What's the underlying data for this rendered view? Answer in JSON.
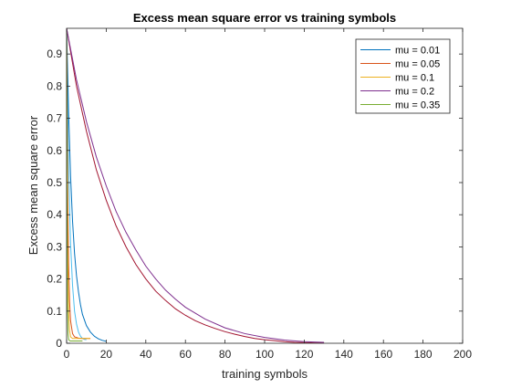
{
  "chart_data": {
    "type": "line",
    "title": "Excess mean square error vs training symbols",
    "xlabel": "training symbols",
    "ylabel": "Excess mean square error",
    "xlim": [
      0,
      200
    ],
    "ylim": [
      0,
      0.98
    ],
    "xticks": [
      0,
      20,
      40,
      60,
      80,
      100,
      120,
      140,
      160,
      180,
      200
    ],
    "yticks": [
      0,
      0.1,
      0.2,
      0.3,
      0.4,
      0.5,
      0.6,
      0.7,
      0.8,
      0.9
    ],
    "ytick_labels": [
      "0",
      "0.1",
      "0.2",
      "0.3",
      "0.4",
      "0.5",
      "0.6",
      "0.7",
      "0.8",
      "0.9"
    ],
    "grid": false,
    "legend_position": "top-right",
    "series": [
      {
        "name": "mu = 0.01",
        "color": "#0072bd",
        "x": [
          0,
          1,
          2,
          3,
          4,
          5,
          6,
          7,
          8,
          10,
          12,
          14,
          16,
          18,
          20
        ],
        "y": [
          0.98,
          0.72,
          0.52,
          0.38,
          0.28,
          0.21,
          0.16,
          0.12,
          0.09,
          0.055,
          0.035,
          0.022,
          0.014,
          0.009,
          0.006
        ]
      },
      {
        "name": "mu = 0.05",
        "color": "#d95319",
        "x": [
          0,
          0.5,
          1,
          1.5,
          2,
          3,
          4,
          6,
          8,
          10,
          12
        ],
        "y": [
          0.98,
          0.5,
          0.25,
          0.13,
          0.07,
          0.03,
          0.02,
          0.016,
          0.015,
          0.015,
          0.015
        ]
      },
      {
        "name": "mu = 0.1",
        "color": "#edb120",
        "x": [
          0,
          0.5,
          1,
          1.5,
          2,
          3,
          4,
          6,
          8,
          10,
          12
        ],
        "y": [
          0.98,
          0.3,
          0.1,
          0.04,
          0.02,
          0.015,
          0.015,
          0.015,
          0.015,
          0.015,
          0.015
        ]
      },
      {
        "name": "mu = 0.2",
        "color": "#7e2f8e",
        "x": [
          0,
          5,
          10,
          15,
          20,
          25,
          30,
          35,
          40,
          45,
          50,
          55,
          60,
          70,
          80,
          90,
          100,
          110,
          120,
          130
        ],
        "y": [
          0.98,
          0.82,
          0.69,
          0.58,
          0.49,
          0.41,
          0.345,
          0.29,
          0.24,
          0.2,
          0.165,
          0.137,
          0.112,
          0.075,
          0.048,
          0.03,
          0.018,
          0.01,
          0.005,
          0.003
        ]
      },
      {
        "name": "mu = 0.35",
        "color": "#77ac30",
        "x": [
          0,
          0.2,
          0.4,
          0.7,
          1,
          1.5,
          2,
          4,
          6,
          8
        ],
        "y": [
          0.98,
          0.4,
          0.12,
          0.03,
          0.012,
          0.008,
          0.007,
          0.007,
          0.007,
          0.007
        ]
      }
    ],
    "extra_traces": [
      {
        "color": "#4dbeee",
        "x": [
          0,
          1,
          2,
          3,
          4,
          5,
          6,
          7,
          8,
          9,
          10
        ],
        "y": [
          0.98,
          0.55,
          0.31,
          0.18,
          0.1,
          0.06,
          0.035,
          0.022,
          0.015,
          0.012,
          0.011
        ]
      },
      {
        "color": "#a2142f",
        "x": [
          0,
          5,
          10,
          15,
          20,
          25,
          30,
          35,
          40,
          45,
          50,
          55,
          60,
          65,
          70,
          75,
          80,
          85,
          90,
          95,
          100,
          105,
          110,
          115,
          120,
          125,
          130
        ],
        "y": [
          0.98,
          0.8,
          0.66,
          0.54,
          0.445,
          0.365,
          0.3,
          0.245,
          0.2,
          0.162,
          0.133,
          0.107,
          0.087,
          0.07,
          0.057,
          0.046,
          0.036,
          0.028,
          0.021,
          0.015,
          0.011,
          0.008,
          0.005,
          0.003,
          0.002,
          0.001,
          0.001
        ]
      }
    ]
  }
}
